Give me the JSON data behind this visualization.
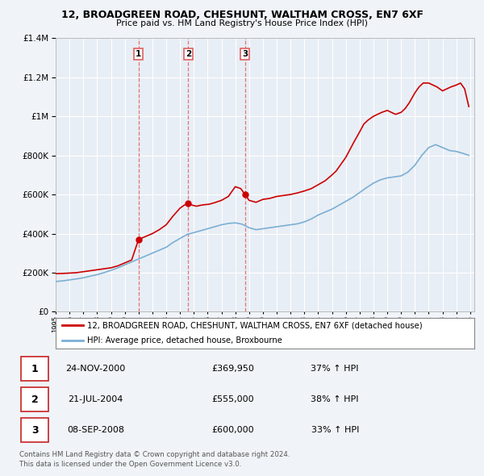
{
  "title": "12, BROADGREEN ROAD, CHESHUNT, WALTHAM CROSS, EN7 6XF",
  "subtitle": "Price paid vs. HM Land Registry's House Price Index (HPI)",
  "red_line_label": "12, BROADGREEN ROAD, CHESHUNT, WALTHAM CROSS, EN7 6XF (detached house)",
  "blue_line_label": "HPI: Average price, detached house, Broxbourne",
  "footer1": "Contains HM Land Registry data © Crown copyright and database right 2024.",
  "footer2": "This data is licensed under the Open Government Licence v3.0.",
  "transactions": [
    {
      "num": 1,
      "date": "24-NOV-2000",
      "price": "£369,950",
      "hpi": "37% ↑ HPI",
      "year": 2001.0
    },
    {
      "num": 2,
      "date": "21-JUL-2004",
      "price": "£555,000",
      "hpi": "38% ↑ HPI",
      "year": 2004.6
    },
    {
      "num": 3,
      "date": "08-SEP-2008",
      "price": "£600,000",
      "hpi": "33% ↑ HPI",
      "year": 2008.7
    }
  ],
  "ylim": [
    0,
    1400000
  ],
  "xlim_start": 1995.0,
  "xlim_end": 2025.3,
  "red_color": "#cc0000",
  "blue_color": "#7bafd4",
  "dashed_color": "#e06060",
  "background_color": "#f0f4f8",
  "plot_bg_color": "#e8eef5",
  "grid_color": "#ffffff",
  "years_red": [
    1995.0,
    1995.5,
    1996.0,
    1996.5,
    1997.0,
    1997.5,
    1998.0,
    1998.5,
    1999.0,
    1999.5,
    2000.0,
    2000.5,
    2001.0,
    2001.5,
    2002.0,
    2002.5,
    2003.0,
    2003.5,
    2004.0,
    2004.3,
    2004.6,
    2004.9,
    2005.2,
    2005.5,
    2005.8,
    2006.1,
    2006.5,
    2007.0,
    2007.5,
    2008.0,
    2008.4,
    2008.7,
    2009.0,
    2009.5,
    2010.0,
    2010.5,
    2011.0,
    2011.5,
    2012.0,
    2012.5,
    2013.0,
    2013.5,
    2014.0,
    2014.5,
    2015.0,
    2015.3,
    2015.6,
    2016.0,
    2016.3,
    2016.6,
    2017.0,
    2017.3,
    2017.6,
    2018.0,
    2018.3,
    2018.6,
    2019.0,
    2019.3,
    2019.6,
    2020.0,
    2020.3,
    2020.6,
    2021.0,
    2021.3,
    2021.6,
    2022.0,
    2022.3,
    2022.6,
    2023.0,
    2023.3,
    2023.6,
    2024.0,
    2024.3,
    2024.6,
    2024.9
  ],
  "values_red": [
    195000,
    196000,
    198000,
    200000,
    205000,
    210000,
    215000,
    220000,
    225000,
    235000,
    250000,
    265000,
    370000,
    385000,
    400000,
    420000,
    445000,
    490000,
    530000,
    545000,
    555000,
    545000,
    540000,
    545000,
    548000,
    550000,
    558000,
    570000,
    590000,
    640000,
    630000,
    600000,
    570000,
    560000,
    575000,
    580000,
    590000,
    595000,
    600000,
    608000,
    618000,
    630000,
    650000,
    670000,
    700000,
    720000,
    750000,
    790000,
    830000,
    870000,
    920000,
    960000,
    980000,
    1000000,
    1010000,
    1020000,
    1030000,
    1020000,
    1010000,
    1020000,
    1040000,
    1070000,
    1120000,
    1150000,
    1170000,
    1170000,
    1160000,
    1150000,
    1130000,
    1140000,
    1150000,
    1160000,
    1170000,
    1140000,
    1050000
  ],
  "years_blue": [
    1995.0,
    1995.5,
    1996.0,
    1996.5,
    1997.0,
    1997.5,
    1998.0,
    1998.5,
    1999.0,
    1999.5,
    2000.0,
    2000.5,
    2001.0,
    2001.5,
    2002.0,
    2002.5,
    2003.0,
    2003.5,
    2004.0,
    2004.5,
    2005.0,
    2005.5,
    2006.0,
    2006.5,
    2007.0,
    2007.5,
    2008.0,
    2008.5,
    2009.0,
    2009.5,
    2010.0,
    2010.5,
    2011.0,
    2011.5,
    2012.0,
    2012.5,
    2013.0,
    2013.5,
    2014.0,
    2014.5,
    2015.0,
    2015.5,
    2016.0,
    2016.5,
    2017.0,
    2017.5,
    2018.0,
    2018.5,
    2019.0,
    2019.5,
    2020.0,
    2020.5,
    2021.0,
    2021.5,
    2022.0,
    2022.5,
    2023.0,
    2023.5,
    2024.0,
    2024.5,
    2024.9
  ],
  "values_blue": [
    155000,
    158000,
    163000,
    168000,
    174000,
    182000,
    190000,
    200000,
    212000,
    225000,
    240000,
    255000,
    270000,
    285000,
    300000,
    315000,
    330000,
    355000,
    375000,
    395000,
    405000,
    415000,
    425000,
    435000,
    445000,
    452000,
    455000,
    448000,
    430000,
    420000,
    425000,
    430000,
    435000,
    440000,
    445000,
    450000,
    460000,
    475000,
    495000,
    510000,
    525000,
    545000,
    565000,
    585000,
    610000,
    635000,
    658000,
    675000,
    685000,
    690000,
    695000,
    715000,
    750000,
    800000,
    840000,
    855000,
    840000,
    825000,
    820000,
    810000,
    800000
  ]
}
